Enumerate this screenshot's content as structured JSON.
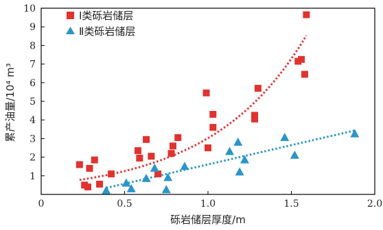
{
  "chart_data": {
    "type": "scatter",
    "xlabel": "砾岩储层厚度/m",
    "ylabel": "累产油量/10⁴ m³",
    "xlim": [
      0,
      2.0
    ],
    "ylim": [
      0,
      10
    ],
    "xticks": [
      0,
      0.5,
      1.0,
      1.5,
      2.0
    ],
    "xtick_labels": [
      "0",
      "0.5",
      "1.0",
      "1.5",
      "2.0"
    ],
    "yticks": [
      1,
      2,
      3,
      4,
      5,
      6,
      7,
      8,
      9,
      10
    ],
    "ytick_labels": [
      "1",
      "2",
      "3",
      "4",
      "5",
      "6",
      "7",
      "8",
      "9",
      "10"
    ],
    "grid": false,
    "legend_position": "top-left",
    "series": [
      {
        "name": "Ⅰ类砾岩储层",
        "marker": "square",
        "color": "#e0332f",
        "x": [
          0.23,
          0.26,
          0.28,
          0.29,
          0.32,
          0.35,
          0.42,
          0.58,
          0.59,
          0.63,
          0.66,
          0.7,
          0.78,
          0.79,
          0.82,
          0.99,
          1.0,
          1.03,
          1.03,
          1.28,
          1.28,
          1.3,
          1.54,
          1.56,
          1.58,
          1.59
        ],
        "y": [
          1.6,
          0.5,
          0.4,
          1.4,
          1.85,
          0.55,
          1.1,
          2.35,
          1.95,
          2.95,
          2.05,
          1.1,
          2.2,
          2.6,
          3.05,
          5.45,
          2.5,
          4.3,
          3.6,
          4.25,
          4.05,
          5.7,
          7.15,
          7.25,
          6.45,
          9.65
        ]
      },
      {
        "name": "Ⅱ类砾岩储层",
        "marker": "triangle",
        "color": "#2b95c9",
        "x": [
          0.39,
          0.51,
          0.54,
          0.63,
          0.68,
          0.76,
          0.75,
          0.86,
          1.13,
          1.18,
          1.19,
          1.22,
          1.46,
          1.52,
          1.88
        ],
        "y": [
          0.2,
          0.6,
          0.3,
          0.85,
          1.4,
          0.9,
          0.25,
          1.5,
          2.3,
          2.8,
          1.2,
          1.85,
          3.05,
          2.1,
          3.25
        ]
      }
    ],
    "trendlines": [
      {
        "series": "Ⅰ类砾岩储层",
        "kind": "exponential",
        "a": 0.52,
        "b": 1.76,
        "x_range": [
          0.23,
          1.59
        ],
        "color": "#e0332f",
        "style": "dotted"
      },
      {
        "series": "Ⅱ类砾岩储层",
        "kind": "linear",
        "slope": 2.07,
        "intercept": -0.46,
        "x_range": [
          0.39,
          1.88
        ],
        "color": "#2b95c9",
        "style": "dotted"
      }
    ]
  }
}
